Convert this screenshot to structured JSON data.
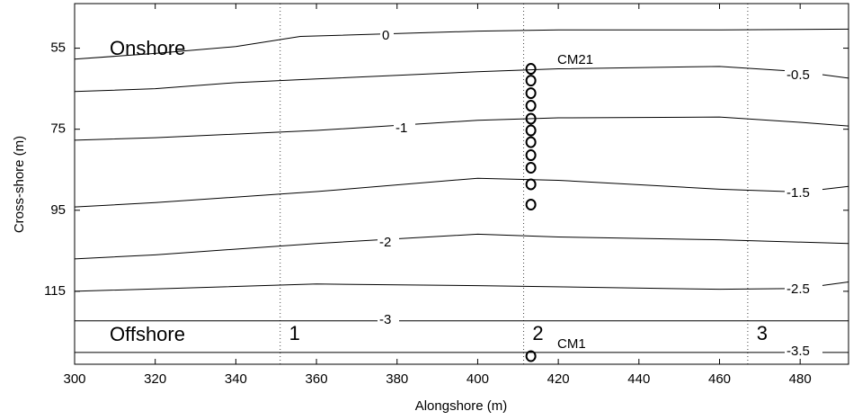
{
  "chart_data": {
    "type": "contour",
    "xlabel": "Alongshore (m)",
    "ylabel": "Cross-shore (m)",
    "xlim": [
      300,
      492
    ],
    "ylim": [
      44,
      133
    ],
    "y_reversed": true,
    "xticks": [
      300,
      320,
      340,
      360,
      380,
      400,
      420,
      440,
      460,
      480
    ],
    "yticks": [
      55,
      75,
      95,
      115
    ],
    "line_color": "#000000",
    "contours": [
      {
        "label": "0",
        "x": [
          300,
          320,
          340,
          356,
          400,
          420,
          460,
          492
        ],
        "y": [
          57.7,
          56.3,
          54.6,
          52.1,
          50.8,
          50.5,
          50.5,
          50.3
        ]
      },
      {
        "label": "-0.5",
        "x": [
          300,
          320,
          340,
          360,
          400,
          420,
          460,
          480,
          492
        ],
        "y": [
          65.7,
          65,
          63.5,
          62.6,
          60.8,
          60.1,
          59.5,
          60.8,
          62.4
        ]
      },
      {
        "label": "-1",
        "x": [
          300,
          320,
          360,
          400,
          420,
          460,
          480,
          492
        ],
        "y": [
          77.7,
          77.1,
          75.3,
          72.8,
          72.2,
          72,
          73.3,
          74.2
        ]
      },
      {
        "label": "-1.5",
        "x": [
          300,
          320,
          360,
          400,
          420,
          460,
          480,
          492
        ],
        "y": [
          94.2,
          93.1,
          90.4,
          87.1,
          87.6,
          89.8,
          90.5,
          89.1
        ]
      },
      {
        "label": "-2",
        "x": [
          300,
          320,
          360,
          400,
          420,
          460,
          492
        ],
        "y": [
          107,
          106,
          103.2,
          100.9,
          101.6,
          102.3,
          103.2
        ]
      },
      {
        "label": "-2.5",
        "x": [
          300,
          360,
          400,
          460,
          480,
          492
        ],
        "y": [
          115,
          113.2,
          113.6,
          114.5,
          114.3,
          112.7
        ]
      },
      {
        "label": "-3",
        "x": [
          300,
          492
        ],
        "y": [
          122.3,
          122.3
        ]
      },
      {
        "label": "-3.5",
        "x": [
          300,
          492
        ],
        "y": [
          130.1,
          130.1
        ]
      }
    ],
    "transects": [
      {
        "label": "1",
        "x": 351
      },
      {
        "label": "2",
        "x": 411.4
      },
      {
        "label": "3",
        "x": 467
      }
    ],
    "stations": {
      "x": 413.2,
      "y": [
        60.1,
        63,
        66.1,
        69.2,
        72.4,
        75.3,
        78.2,
        81.4,
        84.5,
        88.6,
        93.6,
        131
      ]
    },
    "annotations": [
      "Onshore",
      "Offshore",
      "CM21",
      "CM1"
    ]
  }
}
